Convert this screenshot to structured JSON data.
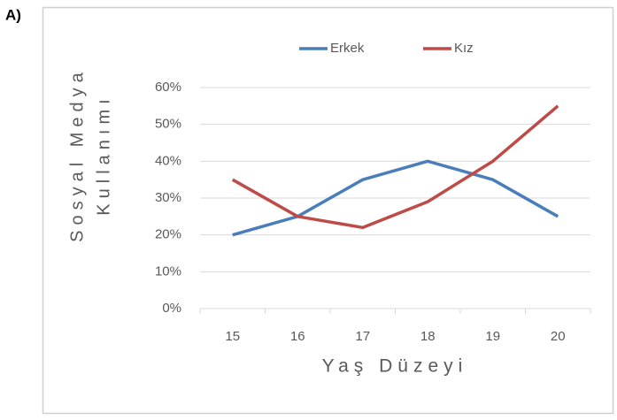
{
  "panel_label": "A)",
  "chart_data": {
    "type": "line",
    "xlabel": "Yaş Düzeyi",
    "ylabel": [
      "Sosyal Medya",
      "Kullanımı"
    ],
    "categories": [
      "15",
      "16",
      "17",
      "18",
      "19",
      "20"
    ],
    "series": [
      {
        "name": "Erkek",
        "color": "#4a7ebb",
        "values": [
          20,
          25,
          35,
          40,
          35,
          25
        ]
      },
      {
        "name": "Kız",
        "color": "#be4b48",
        "values": [
          35,
          25,
          22,
          29,
          40,
          55
        ]
      }
    ],
    "ylim": [
      0,
      60
    ],
    "yticks": [
      {
        "value": 0,
        "label": "0%"
      },
      {
        "value": 10,
        "label": "10%"
      },
      {
        "value": 20,
        "label": "20%"
      },
      {
        "value": 30,
        "label": "30%"
      },
      {
        "value": 40,
        "label": "40%"
      },
      {
        "value": 50,
        "label": "50%"
      },
      {
        "value": 60,
        "label": "60%"
      }
    ],
    "grid": true,
    "legend": "top"
  }
}
